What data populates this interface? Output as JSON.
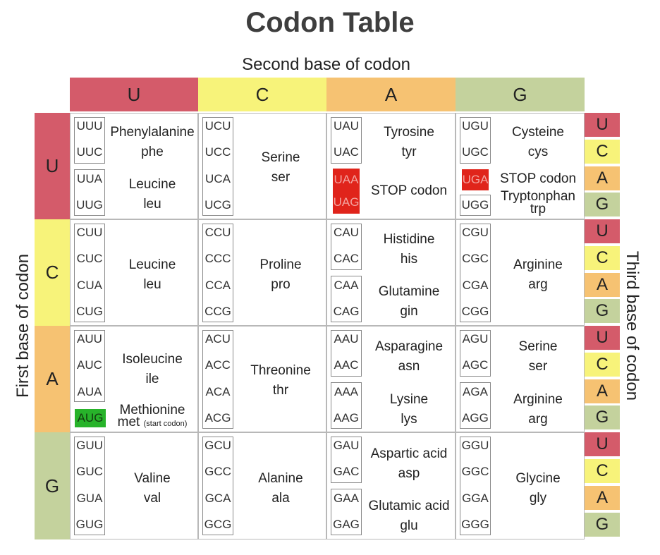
{
  "title": "Codon Table",
  "second_base_label": "Second base of codon",
  "first_base_label": "First base of codon",
  "third_base_label": "Third base of codon",
  "bases": [
    "U",
    "C",
    "A",
    "G"
  ],
  "colors": {
    "U": "#d45b6a",
    "C": "#f7f37a",
    "A": "#f6c272",
    "G": "#c4d29d",
    "stop_highlight": "#e0241b",
    "start_highlight": "#27b32a"
  },
  "third_bases": [
    "U",
    "C",
    "A",
    "G",
    "U",
    "C",
    "A",
    "G",
    "U",
    "C",
    "A",
    "G",
    "U",
    "C",
    "A",
    "G"
  ],
  "codons": {
    "UU": [
      "UUU",
      "UUC",
      "UUA",
      "UUG"
    ],
    "UC": [
      "UCU",
      "UCC",
      "UCA",
      "UCG"
    ],
    "UA": [
      "UAU",
      "UAC",
      "UAA",
      "UAG"
    ],
    "UG": [
      "UGU",
      "UGC",
      "UGA",
      "UGG"
    ],
    "CU": [
      "CUU",
      "CUC",
      "CUA",
      "CUG"
    ],
    "CC": [
      "CCU",
      "CCC",
      "CCA",
      "CCG"
    ],
    "CA": [
      "CAU",
      "CAC",
      "CAA",
      "CAG"
    ],
    "CG": [
      "CGU",
      "CGC",
      "CGA",
      "CGG"
    ],
    "AU": [
      "AUU",
      "AUC",
      "AUA",
      "AUG"
    ],
    "AC": [
      "ACU",
      "ACC",
      "ACA",
      "ACG"
    ],
    "AA": [
      "AAU",
      "AAC",
      "AAA",
      "AAG"
    ],
    "AG": [
      "AGU",
      "AGC",
      "AGA",
      "AGG"
    ],
    "GU": [
      "GUU",
      "GUC",
      "GUA",
      "GUG"
    ],
    "GC": [
      "GCU",
      "GCC",
      "GCA",
      "GCG"
    ],
    "GA": [
      "GAU",
      "GAC",
      "GAA",
      "GAG"
    ],
    "GG": [
      "GGU",
      "GGC",
      "GGA",
      "GGG"
    ]
  },
  "amino_acids": {
    "phe": {
      "name": "Phenylalanine",
      "abbr": "phe"
    },
    "leu_u": {
      "name": "Leucine",
      "abbr": "leu"
    },
    "ser_u": {
      "name": "Serine",
      "abbr": "ser"
    },
    "tyr": {
      "name": "Tyrosine",
      "abbr": "tyr"
    },
    "stop_ua": {
      "name": "STOP codon"
    },
    "cys": {
      "name": "Cysteine",
      "abbr": "cys"
    },
    "stop_ug": {
      "name": "STOP codon"
    },
    "trp": {
      "name": "Tryptonphan",
      "abbr": "trp"
    },
    "leu_c": {
      "name": "Leucine",
      "abbr": "leu"
    },
    "pro": {
      "name": "Proline",
      "abbr": "pro"
    },
    "his": {
      "name": "Histidine",
      "abbr": "his"
    },
    "gln": {
      "name": "Glutamine",
      "abbr": "gin"
    },
    "arg_c": {
      "name": "Arginine",
      "abbr": "arg"
    },
    "ile": {
      "name": "Isoleucine",
      "abbr": "ile"
    },
    "met": {
      "name": "Methionine",
      "abbr": "met",
      "note": "(start codon)"
    },
    "thr": {
      "name": "Threonine",
      "abbr": "thr"
    },
    "asn": {
      "name": "Asparagine",
      "abbr": "asn"
    },
    "lys": {
      "name": "Lysine",
      "abbr": "lys"
    },
    "ser_a": {
      "name": "Serine",
      "abbr": "ser"
    },
    "arg_a": {
      "name": "Arginine",
      "abbr": "arg"
    },
    "val": {
      "name": "Valine",
      "abbr": "val"
    },
    "ala": {
      "name": "Alanine",
      "abbr": "ala"
    },
    "asp": {
      "name": "Aspartic acid",
      "abbr": "asp"
    },
    "glu": {
      "name": "Glutamic acid",
      "abbr": "glu"
    },
    "gly": {
      "name": "Glycine",
      "abbr": "gly"
    }
  }
}
